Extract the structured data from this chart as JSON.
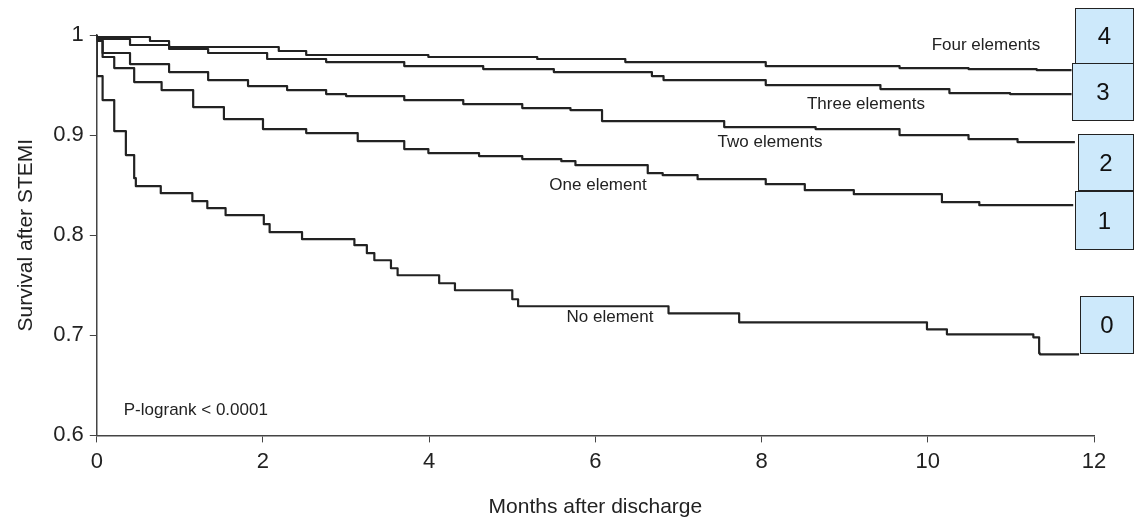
{
  "chart_data": {
    "type": "step",
    "xlabel": "Months after discharge",
    "ylabel": "Survival after STEMI",
    "xlim": [
      0,
      12
    ],
    "xticks": [
      0,
      2,
      4,
      6,
      8,
      10,
      12
    ],
    "ylim": [
      0.6,
      1
    ],
    "yticks": [
      {
        "value": 0.6,
        "label": "0.6"
      },
      {
        "value": 0.7,
        "label": "0.7"
      },
      {
        "value": 0.8,
        "label": "0.8"
      },
      {
        "value": 0.9,
        "label": "0.9"
      },
      {
        "value": 1,
        "label": "1"
      }
    ],
    "grid": false,
    "legend": false,
    "marker": "none",
    "line_style": "solid",
    "series": [
      {
        "name": "Four elements",
        "color": "#222222",
        "x": [
          0,
          0.64,
          0.87,
          2.19,
          2.52,
          3.99,
          5.3,
          6.36,
          8.05,
          9.66,
          10.49,
          11.31,
          11.49,
          11.73
        ],
        "values": [
          1,
          0.998,
          0.994,
          0.988,
          0.984,
          0.98,
          0.978,
          0.976,
          0.973,
          0.969,
          0.967,
          0.966,
          0.965,
          0.965
        ]
      },
      {
        "name": "Three elements",
        "color": "#222222",
        "x": [
          0,
          0.4,
          0.87,
          1.34,
          2.05,
          2.76,
          3.7,
          4.65,
          5.5,
          6.68,
          6.82,
          8.05,
          9.43,
          10.26,
          10.99,
          11.73
        ],
        "values": [
          1,
          0.996,
          0.99,
          0.986,
          0.982,
          0.976,
          0.973,
          0.969,
          0.966,
          0.963,
          0.959,
          0.955,
          0.95,
          0.946,
          0.942,
          0.941
        ]
      },
      {
        "name": "Two elements",
        "color": "#222222",
        "x": [
          0,
          0.07,
          0.4,
          0.87,
          1.34,
          1.82,
          2.29,
          2.76,
          3.0,
          3.7,
          4.41,
          5.12,
          5.7,
          6.08,
          7.55,
          8.65,
          9.66,
          10.49,
          11.08,
          11.77
        ],
        "values": [
          1,
          0.996,
          0.982,
          0.971,
          0.963,
          0.955,
          0.949,
          0.945,
          0.941,
          0.939,
          0.935,
          0.931,
          0.927,
          0.925,
          0.914,
          0.908,
          0.906,
          0.9,
          0.896,
          0.893
        ]
      },
      {
        "name": "One element",
        "color": "#222222",
        "x": [
          0,
          0.07,
          0.21,
          0.45,
          0.78,
          1.16,
          1.53,
          2.0,
          2.52,
          3.14,
          3.7,
          3.99,
          4.6,
          5.12,
          5.59,
          5.76,
          6.63,
          6.81,
          7.23,
          8.05,
          8.52,
          9.11,
          10.17,
          10.62,
          11.36,
          11.75
        ],
        "values": [
          1,
          0.994,
          0.978,
          0.967,
          0.953,
          0.945,
          0.928,
          0.916,
          0.906,
          0.902,
          0.894,
          0.886,
          0.882,
          0.879,
          0.876,
          0.874,
          0.87,
          0.862,
          0.86,
          0.856,
          0.851,
          0.845,
          0.841,
          0.833,
          0.83,
          0.83
        ]
      },
      {
        "name": "No element",
        "color": "#222222",
        "x": [
          0,
          0.07,
          0.21,
          0.35,
          0.45,
          0.47,
          0.77,
          1.15,
          1.33,
          1.55,
          2.01,
          2.08,
          2.47,
          3.1,
          3.25,
          3.34,
          3.54,
          3.62,
          4.12,
          4.31,
          5.0,
          5.07,
          6.88,
          7.73,
          9.99,
          10.23,
          11.27,
          11.34,
          11.35,
          11.82
        ],
        "values": [
          1,
          0.959,
          0.935,
          0.904,
          0.88,
          0.857,
          0.849,
          0.842,
          0.834,
          0.827,
          0.82,
          0.811,
          0.803,
          0.796,
          0.79,
          0.782,
          0.775,
          0.767,
          0.76,
          0.752,
          0.745,
          0.736,
          0.729,
          0.722,
          0.713,
          0.706,
          0.701,
          0.698,
          0.682,
          0.681
        ]
      }
    ],
    "annotations": [
      "P-logrank < 0.0001",
      "4",
      "3",
      "2",
      "1",
      "0"
    ]
  }
}
